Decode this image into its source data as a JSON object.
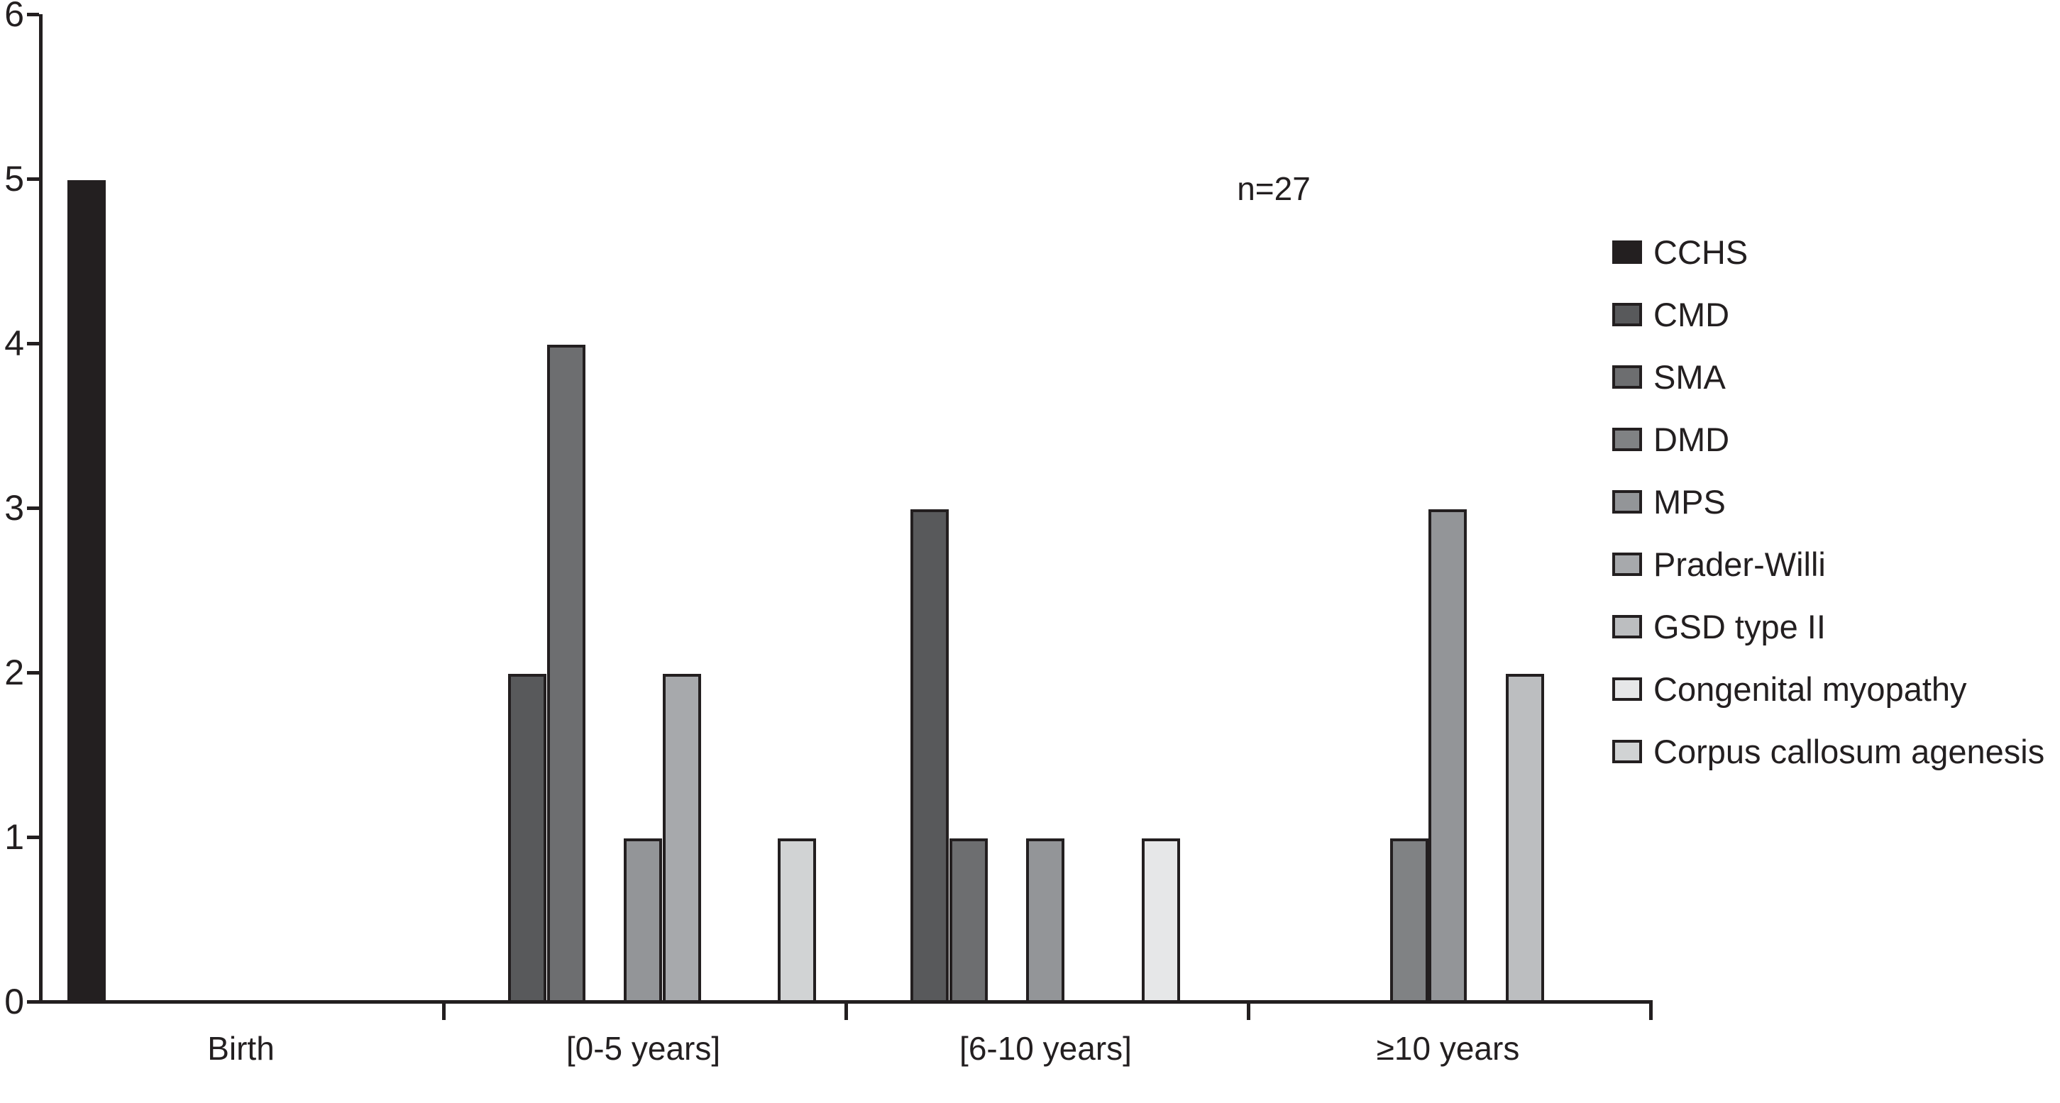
{
  "chart_data": {
    "type": "bar",
    "title": "",
    "annotation": "n=27",
    "categories": [
      "Birth",
      "[0-5 years]",
      "[6-10 years]",
      "≥10 years"
    ],
    "series": [
      {
        "name": "CCHS",
        "color": "#231f20",
        "values": [
          5,
          0,
          0,
          0
        ]
      },
      {
        "name": "CMD",
        "color": "#58595b",
        "values": [
          0,
          2,
          3,
          0
        ]
      },
      {
        "name": "SMA",
        "color": "#6d6e70",
        "values": [
          0,
          4,
          1,
          0
        ]
      },
      {
        "name": "DMD",
        "color": "#808284",
        "values": [
          0,
          0,
          0,
          1
        ]
      },
      {
        "name": "MPS",
        "color": "#939598",
        "values": [
          0,
          1,
          1,
          3
        ]
      },
      {
        "name": "Prader-Willi",
        "color": "#a7a9ac",
        "values": [
          0,
          2,
          0,
          0
        ]
      },
      {
        "name": "GSD type II",
        "color": "#bcbec0",
        "values": [
          0,
          0,
          0,
          2
        ]
      },
      {
        "name": "Congenital myopathy",
        "color": "#e6e7e8",
        "values": [
          0,
          0,
          1,
          0
        ]
      },
      {
        "name": "Corpus callosum agenesis",
        "color": "#d1d3d4",
        "values": [
          0,
          1,
          0,
          0
        ]
      }
    ],
    "y_axis": {
      "min": 0,
      "max": 6,
      "tick_labels": [
        "0",
        "1",
        "2",
        "3",
        "4",
        "5",
        "6"
      ]
    },
    "x_axis": {
      "label": ""
    },
    "legend_position": "right",
    "grid": false,
    "axis_color": "#231f20",
    "bar_outline_color": "#231f20"
  }
}
